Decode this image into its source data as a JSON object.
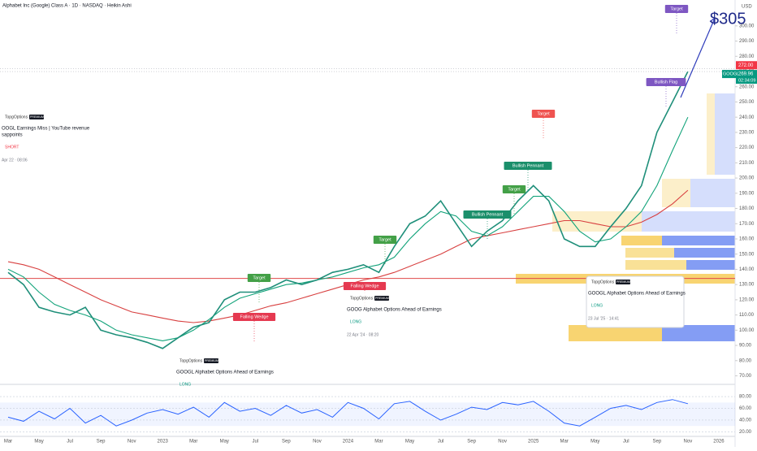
{
  "chart_data": {
    "type": "line",
    "title": "Alphabet Inc (Google) Class A · 1D · NASDAQ · Heikin Ashi",
    "currency": "USD",
    "categories": [
      "Mar",
      null,
      "May",
      null,
      "Jul",
      null,
      "Sep",
      null,
      "Nov",
      null,
      "2023",
      null,
      "Mar",
      null,
      "May",
      null,
      "Jul",
      null,
      "Sep",
      null,
      "Nov",
      null,
      "2024",
      null,
      "Mar",
      null,
      "May",
      null,
      "Jul",
      null,
      "Sep",
      null,
      "Nov",
      null,
      "2025",
      null,
      "Mar",
      null,
      "May",
      null,
      "Jul",
      null,
      "Sep",
      null,
      "Nov",
      null,
      "2026"
    ],
    "series": [
      {
        "name": "GOOGL",
        "color": "#1f8f7a",
        "values": [
          138,
          130,
          115,
          112,
          110,
          115,
          100,
          97,
          95,
          92,
          88,
          95,
          102,
          105,
          120,
          125,
          125,
          128,
          133,
          130,
          133,
          138,
          140,
          143,
          138,
          155,
          170,
          175,
          185,
          170,
          155,
          165,
          172,
          185,
          195,
          185,
          160,
          155,
          155,
          168,
          180,
          195,
          230,
          250,
          270,
          null,
          null
        ]
      },
      {
        "color": "#12a37a",
        "values": [
          140,
          135,
          125,
          117,
          113,
          110,
          106,
          100,
          97,
          95,
          93,
          95,
          100,
          107,
          115,
          121,
          124,
          127,
          130,
          131,
          133,
          135,
          138,
          141,
          143,
          148,
          160,
          170,
          178,
          175,
          165,
          162,
          168,
          178,
          188,
          188,
          178,
          165,
          158,
          160,
          168,
          178,
          195,
          218,
          240,
          null,
          null
        ]
      },
      {
        "color": "#d84040",
        "values": [
          145,
          143,
          140,
          135,
          130,
          125,
          120,
          116,
          112,
          110,
          108,
          106,
          105,
          106,
          108,
          110,
          113,
          116,
          118,
          121,
          124,
          127,
          130,
          133,
          135,
          138,
          142,
          146,
          150,
          155,
          160,
          162,
          164,
          166,
          168,
          170,
          172,
          172,
          170,
          168,
          168,
          171,
          176,
          183,
          192,
          null,
          null
        ]
      }
    ],
    "ylim": [
      66,
      317
    ],
    "yticks": [
      {
        "value": 70,
        "label": "70.00"
      },
      {
        "value": 80,
        "label": "80.00"
      },
      {
        "value": 90,
        "label": "90.00"
      },
      {
        "value": 100,
        "label": "100.00"
      },
      {
        "value": 110,
        "label": "110.00"
      },
      {
        "value": 120,
        "label": "120.00"
      },
      {
        "value": 130,
        "label": "130.00"
      },
      {
        "value": 140,
        "label": "140.00"
      },
      {
        "value": 150,
        "label": "150.00"
      },
      {
        "value": 160,
        "label": "160.00"
      },
      {
        "value": 170,
        "label": "170.00"
      },
      {
        "value": 180,
        "label": "180.00"
      },
      {
        "value": 190,
        "label": "190.00"
      },
      {
        "value": 200,
        "label": "200.00"
      },
      {
        "value": 210,
        "label": "210.00"
      },
      {
        "value": 220,
        "label": "220.00"
      },
      {
        "value": 230,
        "label": "230.00"
      },
      {
        "value": 240,
        "label": "240.00"
      },
      {
        "value": 250,
        "label": "250.00"
      },
      {
        "value": 260,
        "label": "260.00"
      },
      {
        "value": 270,
        "label": "270.00"
      },
      {
        "value": 280,
        "label": "280.00"
      },
      {
        "value": 290,
        "label": "290.00"
      },
      {
        "value": 300,
        "label": "300.00"
      }
    ],
    "support_level": 134,
    "price_tags": [
      {
        "value": 272,
        "label": "272.00",
        "color": "#f23645"
      },
      {
        "value": 269.96,
        "label": "269.96",
        "color": "#089981"
      }
    ],
    "countdown": "02:34:09",
    "target_price": 305,
    "target_label": "$305",
    "annotations": [
      {
        "text": "Target",
        "color": "#7e57c2"
      },
      {
        "text": "Target",
        "color": "#ef5350"
      },
      {
        "text": "Target",
        "color": "#43a047"
      },
      {
        "text": "Target",
        "color": "#43a047"
      },
      {
        "text": "Target",
        "color": "#43a047"
      },
      {
        "text": "Bullish Flag",
        "color": "#7e57c2"
      },
      {
        "text": "Bullish Pennant",
        "color": "#1b8f6b"
      },
      {
        "text": "Bullish Pennant",
        "color": "#1b8f6b"
      },
      {
        "text": "Falling Wedge",
        "color": "#e53950"
      },
      {
        "text": "Falling Wedge",
        "color": "#e53950"
      }
    ],
    "cards": [
      {
        "author": "TopgOptions",
        "badge": "PREMIUM",
        "title": [
          "OOGL Earnings Miss | YouTube revenue",
          "sappoints"
        ],
        "side": "SHORT",
        "date": "Apr 22 · 08:06"
      },
      {
        "author": "TopgOptions",
        "badge": "PREMIUM",
        "title": [
          "GOOG Alphabet Options Ahead of Earnings"
        ],
        "side": "LONG",
        "date": "22 Apr '24 · 08:20"
      },
      {
        "author": "TopgOptions",
        "badge": "PREMIUM",
        "title": [
          "GOOGL Alphabet Options Ahead of Earnings"
        ],
        "side": "LONG",
        "date": "23 Jul '25 · 14:41"
      },
      {
        "author": "TopgOptions",
        "badge": "PREMIUM",
        "title": [
          "GOOGL Alphabet Options Ahead of Earnings"
        ],
        "side": "LONG"
      }
    ],
    "rsi": {
      "color": "#2962ff",
      "ylim": [
        15,
        94
      ],
      "yticks": [
        {
          "value": 20,
          "label": "20.00"
        },
        {
          "value": 40,
          "label": "40.00"
        },
        {
          "value": 60,
          "label": "60.00"
        },
        {
          "value": 80,
          "label": "80.00"
        }
      ],
      "values": [
        45,
        38,
        55,
        42,
        60,
        35,
        48,
        30,
        40,
        52,
        58,
        50,
        62,
        45,
        70,
        55,
        60,
        48,
        65,
        52,
        58,
        45,
        70,
        60,
        42,
        68,
        72,
        55,
        40,
        50,
        62,
        58,
        70,
        66,
        72,
        55,
        35,
        30,
        45,
        60,
        65,
        58,
        70,
        75,
        68,
        null,
        null
      ]
    }
  }
}
